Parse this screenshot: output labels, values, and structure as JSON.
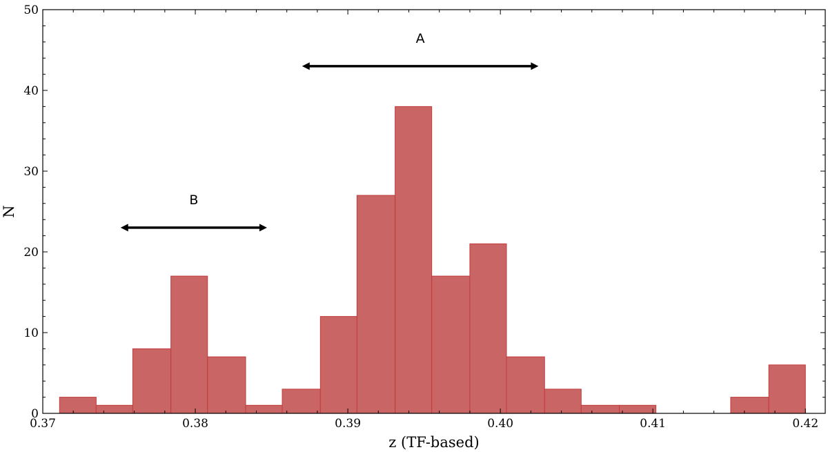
{
  "chart_data": {
    "type": "bar",
    "subtype": "histogram",
    "title": "",
    "xlabel": "z (TF-based)",
    "ylabel": "N",
    "xlim": [
      0.37,
      0.4213
    ],
    "ylim": [
      0,
      50
    ],
    "x_ticks": [
      0.37,
      0.38,
      0.39,
      0.4,
      0.41,
      0.42
    ],
    "x_tick_labels": [
      "0.37",
      "0.38",
      "0.39",
      "0.40",
      "0.41",
      "0.42"
    ],
    "y_ticks": [
      0,
      10,
      20,
      30,
      40,
      50
    ],
    "y_tick_labels": [
      "0",
      "10",
      "20",
      "30",
      "40",
      "50"
    ],
    "grid": false,
    "bar_color": "#c96565",
    "bar_edge_color": "#c23b3b",
    "bins": [
      {
        "x0": 0.3711,
        "x1": 0.3735,
        "value": 2
      },
      {
        "x0": 0.3735,
        "x1": 0.3759,
        "value": 1
      },
      {
        "x0": 0.3759,
        "x1": 0.3784,
        "value": 8
      },
      {
        "x0": 0.3784,
        "x1": 0.3808,
        "value": 17
      },
      {
        "x0": 0.3808,
        "x1": 0.3833,
        "value": 7
      },
      {
        "x0": 0.3833,
        "x1": 0.3857,
        "value": 1
      },
      {
        "x0": 0.3857,
        "x1": 0.3882,
        "value": 3
      },
      {
        "x0": 0.3882,
        "x1": 0.3906,
        "value": 12
      },
      {
        "x0": 0.3906,
        "x1": 0.3931,
        "value": 27
      },
      {
        "x0": 0.3931,
        "x1": 0.3955,
        "value": 38
      },
      {
        "x0": 0.3955,
        "x1": 0.398,
        "value": 17
      },
      {
        "x0": 0.398,
        "x1": 0.4004,
        "value": 21
      },
      {
        "x0": 0.4004,
        "x1": 0.4029,
        "value": 7
      },
      {
        "x0": 0.4029,
        "x1": 0.4053,
        "value": 3
      },
      {
        "x0": 0.4053,
        "x1": 0.4078,
        "value": 1
      },
      {
        "x0": 0.4078,
        "x1": 0.4102,
        "value": 1
      },
      {
        "x0": 0.4102,
        "x1": 0.4127,
        "value": 0
      },
      {
        "x0": 0.4127,
        "x1": 0.4151,
        "value": 0
      },
      {
        "x0": 0.4151,
        "x1": 0.4176,
        "value": 2
      },
      {
        "x0": 0.4176,
        "x1": 0.42,
        "value": 6
      }
    ],
    "annotations": [
      {
        "label": "A",
        "x_start": 0.387,
        "x_end": 0.4025,
        "y": 43,
        "label_y": 46.5
      },
      {
        "label": "B",
        "x_start": 0.3751,
        "x_end": 0.3847,
        "y": 23,
        "label_y": 26.5
      }
    ]
  }
}
